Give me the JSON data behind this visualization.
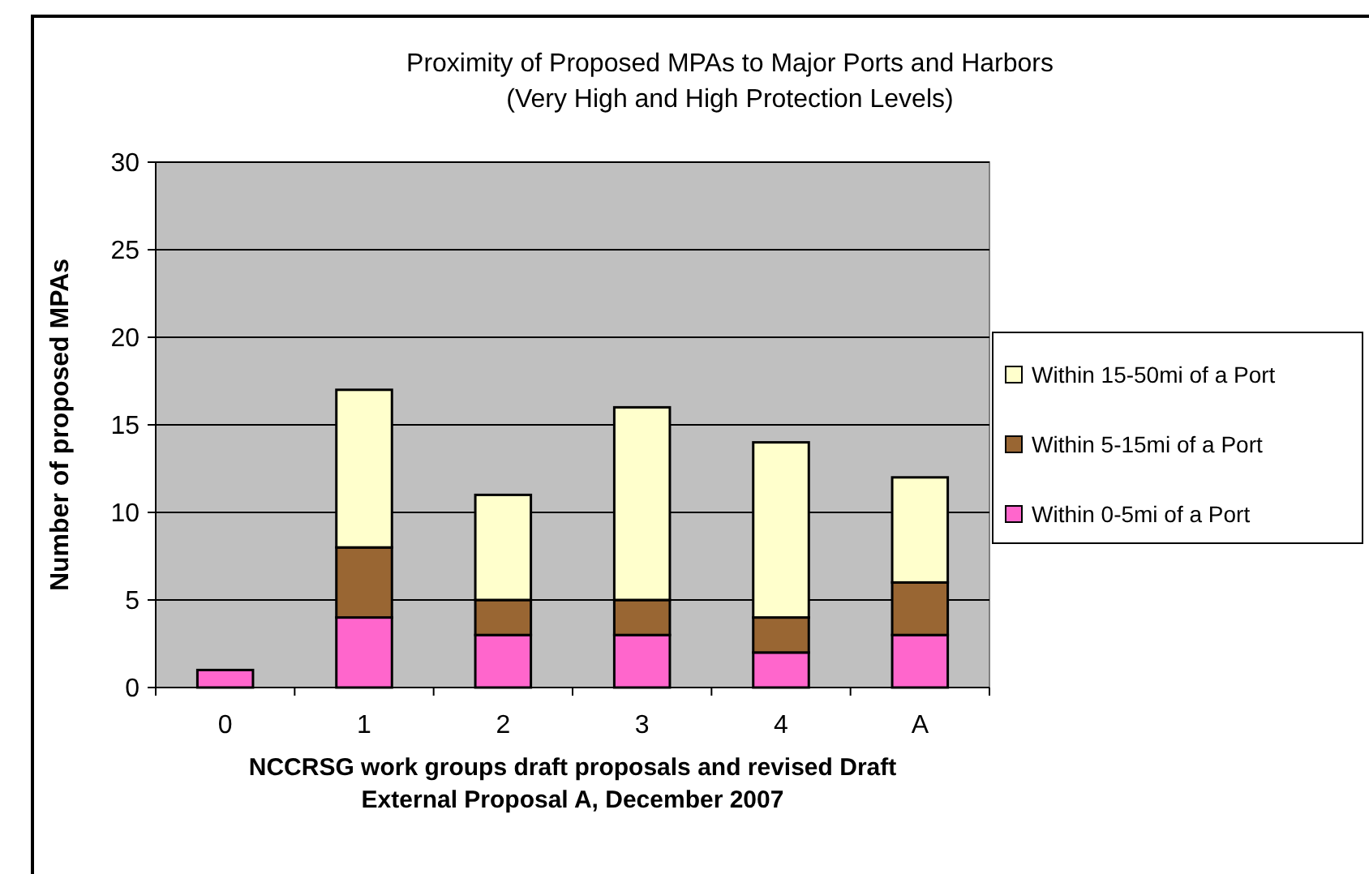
{
  "chart_data": {
    "type": "bar",
    "title": "Proximity of Proposed MPAs to Major Ports and Harbors",
    "subtitle": "(Very High and High Protection Levels)",
    "xlabel": "NCCRSG work groups draft proposals and revised Draft External Proposal A, December 2007",
    "ylabel": "Number of proposed MPAs",
    "categories": [
      "0",
      "1",
      "2",
      "3",
      "4",
      "A"
    ],
    "stacked": true,
    "series": [
      {
        "name": "Within 0-5mi of a Port",
        "color": "#ff66cc",
        "values": [
          1,
          4,
          3,
          3,
          2,
          3
        ]
      },
      {
        "name": "Within 5-15mi of a Port",
        "color": "#996633",
        "values": [
          0,
          4,
          2,
          2,
          2,
          3
        ]
      },
      {
        "name": "Within 15-50mi of a Port",
        "color": "#ffffcc",
        "values": [
          0,
          9,
          6,
          11,
          10,
          6
        ]
      }
    ],
    "ylim": [
      0,
      30
    ],
    "yticks": [
      0,
      5,
      10,
      15,
      20,
      25,
      30
    ],
    "grid": "y",
    "legend": "right"
  }
}
